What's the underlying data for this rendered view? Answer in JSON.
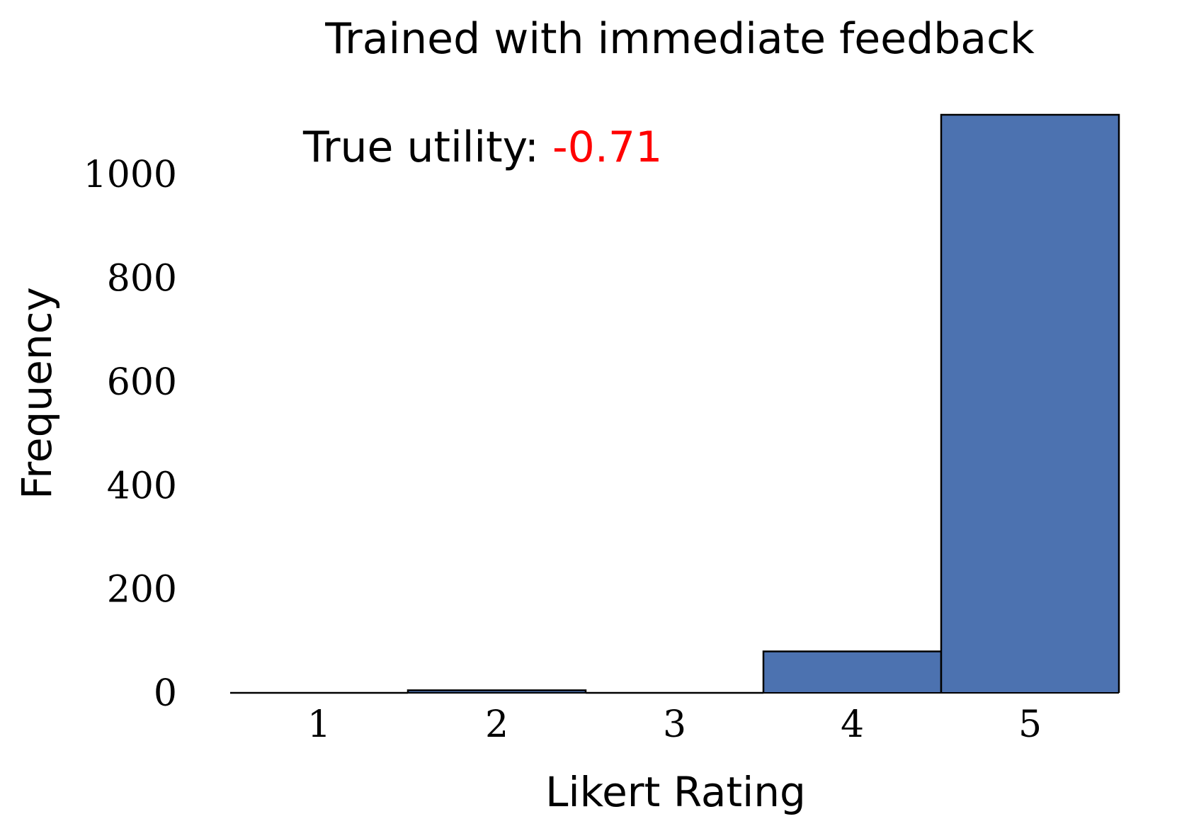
{
  "chart_data": {
    "type": "bar",
    "title": "Trained with immediate feedback",
    "xlabel": "Likert Rating",
    "ylabel": "Frequency",
    "categories": [
      "1",
      "2",
      "3",
      "4",
      "5"
    ],
    "values": [
      0,
      5,
      0,
      80,
      1115
    ],
    "ylim": [
      0,
      1150
    ],
    "yticks": [
      "0",
      "200",
      "400",
      "600",
      "800",
      "1000"
    ],
    "ytick_values": [
      0,
      200,
      400,
      600,
      800,
      1000
    ],
    "grid": false,
    "bar_color": "#4c72b0",
    "bar_edge_color": "#000000",
    "annotation": {
      "prefix": "True utility: ",
      "value": "-0.71",
      "value_color": "#ff0000"
    }
  }
}
